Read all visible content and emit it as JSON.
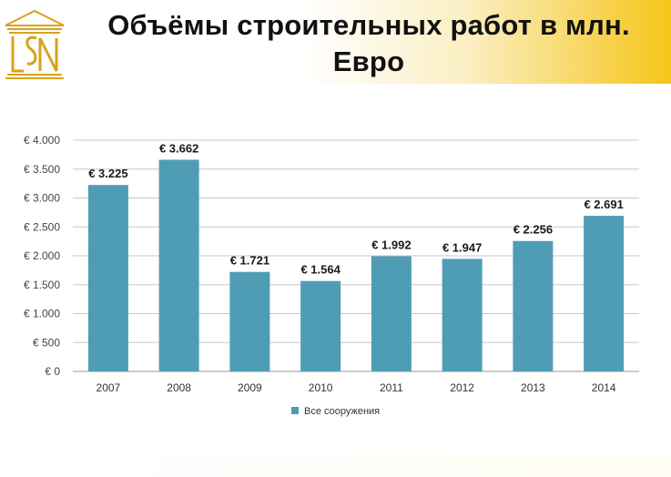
{
  "slide": {
    "title": "Объёмы строительных работ в млн. Евро",
    "logo_text": "LSN",
    "colors": {
      "accent_gold": "#f5c518",
      "logo_gold": "#d9a21b",
      "bar": "#4f9db5"
    }
  },
  "chart_data": {
    "type": "bar",
    "title": "",
    "xlabel": "",
    "ylabel": "",
    "categories": [
      "2007",
      "2008",
      "2009",
      "2010",
      "2011",
      "2012",
      "2013",
      "2014"
    ],
    "series": [
      {
        "name": "Все сооружения",
        "values": [
          3225,
          3662,
          1721,
          1564,
          1992,
          1947,
          2256,
          2691
        ],
        "labels": [
          "€ 3.225",
          "€ 3.662",
          "€ 1.721",
          "€ 1.564",
          "€ 1.992",
          "€ 1.947",
          "€ 2.256",
          "€ 2.691"
        ]
      }
    ],
    "ylim": [
      0,
      4000
    ],
    "yticks": [
      0,
      500,
      1000,
      1500,
      2000,
      2500,
      3000,
      3500,
      4000
    ],
    "ytick_labels": [
      "€ 0",
      "€ 500",
      "€ 1.000",
      "€ 1.500",
      "€ 2.000",
      "€ 2.500",
      "€ 3.000",
      "€ 3.500",
      "€ 4.000"
    ],
    "grid": true,
    "legend": "bottom-center"
  }
}
